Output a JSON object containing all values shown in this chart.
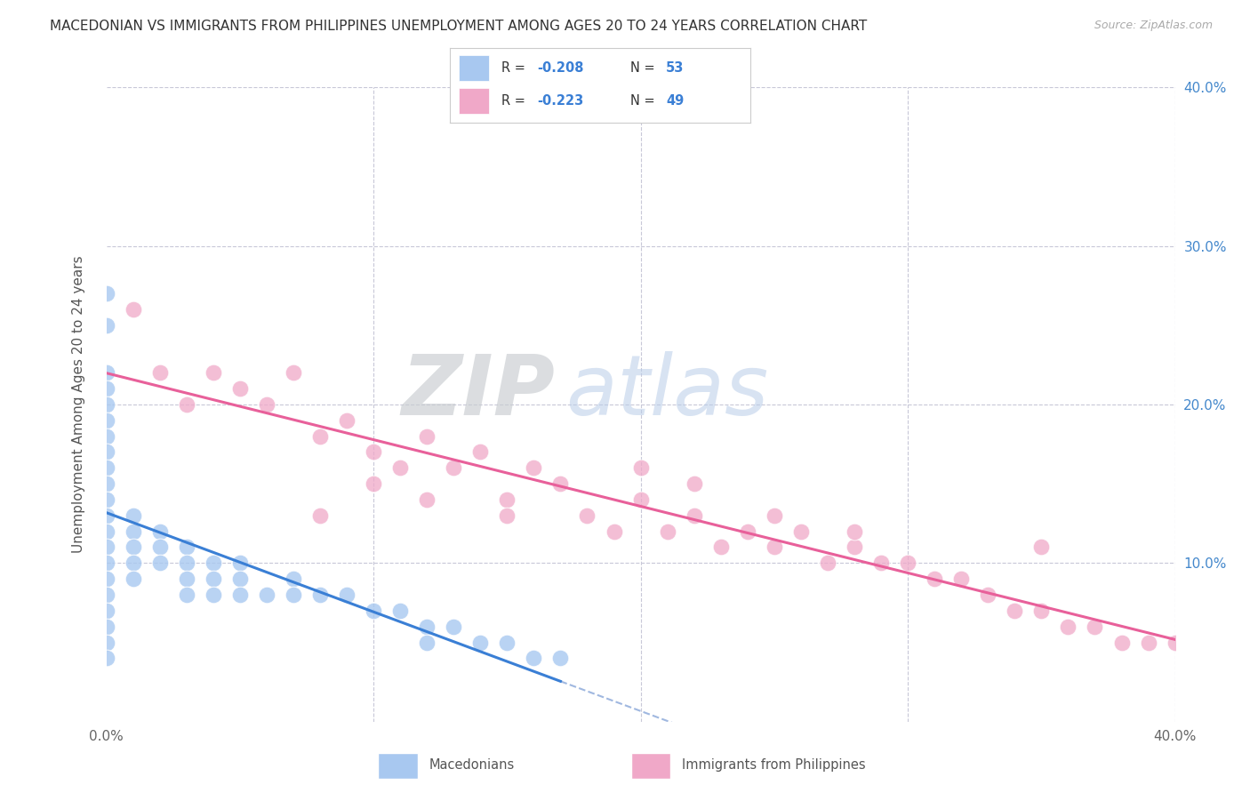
{
  "title": "MACEDONIAN VS IMMIGRANTS FROM PHILIPPINES UNEMPLOYMENT AMONG AGES 20 TO 24 YEARS CORRELATION CHART",
  "source": "Source: ZipAtlas.com",
  "ylabel": "Unemployment Among Ages 20 to 24 years",
  "xlim": [
    0.0,
    0.4
  ],
  "ylim": [
    0.0,
    0.4
  ],
  "macedonian_R": -0.208,
  "macedonian_N": 53,
  "philippines_R": -0.223,
  "philippines_N": 49,
  "macedonian_color": "#a8c8f0",
  "philippines_color": "#f0a8c8",
  "macedonian_line_color": "#3a7fd5",
  "philippines_line_color": "#e8609a",
  "regression_dashed_color": "#a0b8e0",
  "background_color": "#ffffff",
  "grid_color": "#c8c8d8",
  "legend_label_macedonians": "Macedonians",
  "legend_label_philippines": "Immigrants from Philippines",
  "macedonian_scatter_x": [
    0.0,
    0.0,
    0.0,
    0.0,
    0.0,
    0.0,
    0.0,
    0.0,
    0.0,
    0.0,
    0.0,
    0.0,
    0.0,
    0.0,
    0.0,
    0.0,
    0.0,
    0.0,
    0.0,
    0.0,
    0.0,
    0.01,
    0.01,
    0.01,
    0.01,
    0.01,
    0.02,
    0.02,
    0.02,
    0.03,
    0.03,
    0.03,
    0.03,
    0.04,
    0.04,
    0.04,
    0.05,
    0.05,
    0.05,
    0.06,
    0.07,
    0.07,
    0.08,
    0.09,
    0.1,
    0.11,
    0.12,
    0.12,
    0.13,
    0.14,
    0.15,
    0.16,
    0.17
  ],
  "macedonian_scatter_y": [
    0.27,
    0.25,
    0.22,
    0.21,
    0.2,
    0.19,
    0.18,
    0.17,
    0.16,
    0.15,
    0.14,
    0.13,
    0.12,
    0.11,
    0.1,
    0.09,
    0.08,
    0.07,
    0.06,
    0.05,
    0.04,
    0.13,
    0.12,
    0.11,
    0.1,
    0.09,
    0.12,
    0.11,
    0.1,
    0.11,
    0.1,
    0.09,
    0.08,
    0.1,
    0.09,
    0.08,
    0.1,
    0.09,
    0.08,
    0.08,
    0.09,
    0.08,
    0.08,
    0.08,
    0.07,
    0.07,
    0.06,
    0.05,
    0.06,
    0.05,
    0.05,
    0.04,
    0.04
  ],
  "philippines_scatter_x": [
    0.01,
    0.02,
    0.03,
    0.04,
    0.05,
    0.06,
    0.07,
    0.08,
    0.09,
    0.1,
    0.11,
    0.12,
    0.13,
    0.14,
    0.15,
    0.16,
    0.17,
    0.18,
    0.19,
    0.2,
    0.21,
    0.22,
    0.23,
    0.24,
    0.25,
    0.26,
    0.27,
    0.28,
    0.29,
    0.3,
    0.31,
    0.32,
    0.33,
    0.34,
    0.35,
    0.36,
    0.37,
    0.38,
    0.39,
    0.4,
    0.08,
    0.1,
    0.12,
    0.15,
    0.2,
    0.22,
    0.25,
    0.28,
    0.35
  ],
  "philippines_scatter_y": [
    0.26,
    0.22,
    0.2,
    0.22,
    0.21,
    0.2,
    0.22,
    0.18,
    0.19,
    0.17,
    0.16,
    0.18,
    0.16,
    0.17,
    0.14,
    0.16,
    0.15,
    0.13,
    0.12,
    0.14,
    0.12,
    0.13,
    0.11,
    0.12,
    0.11,
    0.12,
    0.1,
    0.11,
    0.1,
    0.1,
    0.09,
    0.09,
    0.08,
    0.07,
    0.07,
    0.06,
    0.06,
    0.05,
    0.05,
    0.05,
    0.13,
    0.15,
    0.14,
    0.13,
    0.16,
    0.15,
    0.13,
    0.12,
    0.11
  ]
}
